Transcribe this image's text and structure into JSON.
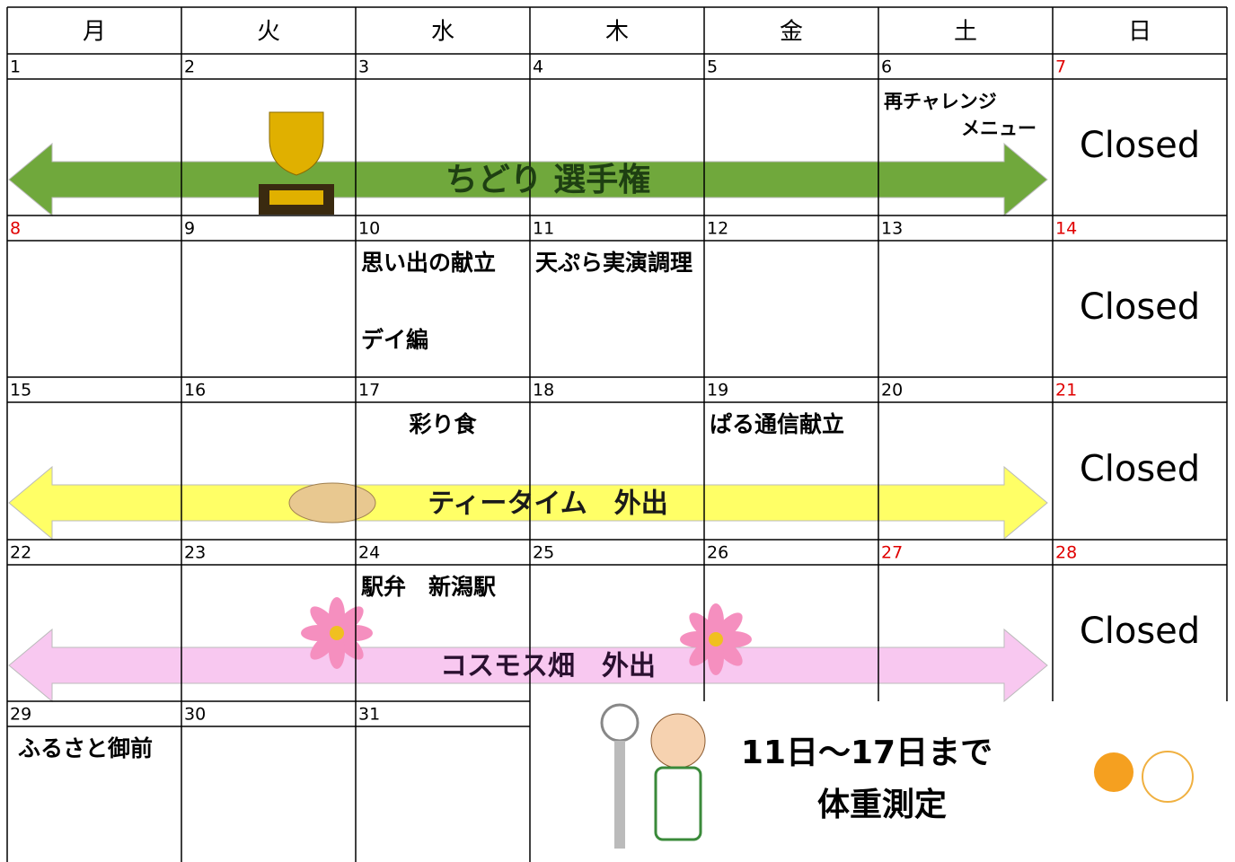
{
  "header": {
    "weekdays": [
      "月",
      "火",
      "水",
      "木",
      "金",
      "土",
      "日"
    ]
  },
  "weeks": [
    {
      "days": [
        {
          "num": "1"
        },
        {
          "num": "2"
        },
        {
          "num": "3"
        },
        {
          "num": "4"
        },
        {
          "num": "5"
        },
        {
          "num": "6",
          "events": [
            "再チャレンジ",
            "メニュー"
          ]
        },
        {
          "num": "7",
          "color": "#e00000"
        }
      ],
      "closed": "Closed",
      "banner": {
        "text": "ちどり  選手権",
        "color": "#70a83c",
        "text_color": "#1e3f12"
      }
    },
    {
      "days": [
        {
          "num": "8",
          "color": "#e00000"
        },
        {
          "num": "9"
        },
        {
          "num": "10",
          "events": [
            "思い出の献立",
            "デイ編"
          ]
        },
        {
          "num": "11",
          "events": [
            "天ぷら実演調理"
          ]
        },
        {
          "num": "12"
        },
        {
          "num": "13"
        },
        {
          "num": "14",
          "color": "#e00000"
        }
      ],
      "closed": "Closed"
    },
    {
      "days": [
        {
          "num": "15"
        },
        {
          "num": "16"
        },
        {
          "num": "17",
          "events": [
            "彩り食"
          ]
        },
        {
          "num": "18"
        },
        {
          "num": "19",
          "events": [
            "ぱる通信献立"
          ]
        },
        {
          "num": "20"
        },
        {
          "num": "21",
          "color": "#e00000"
        }
      ],
      "closed": "Closed",
      "banner": {
        "text": "ティータイム　外出",
        "color": "#ffff66",
        "text_color": "#1a1a1a"
      }
    },
    {
      "days": [
        {
          "num": "22"
        },
        {
          "num": "23"
        },
        {
          "num": "24",
          "events": [
            "駅弁　新潟駅"
          ]
        },
        {
          "num": "25"
        },
        {
          "num": "26"
        },
        {
          "num": "27",
          "color": "#e00000"
        },
        {
          "num": "28",
          "color": "#e00000"
        }
      ],
      "closed": "Closed",
      "banner": {
        "text": "コスモス畑　外出",
        "color": "#f8c8f0",
        "text_color": "#2a1030"
      }
    },
    {
      "days": [
        {
          "num": "29",
          "events": [
            "ふるさと御前"
          ]
        },
        {
          "num": "30"
        },
        {
          "num": "31"
        }
      ]
    }
  ],
  "note": {
    "lines": [
      "11日～17日まで",
      "体重測定"
    ]
  }
}
